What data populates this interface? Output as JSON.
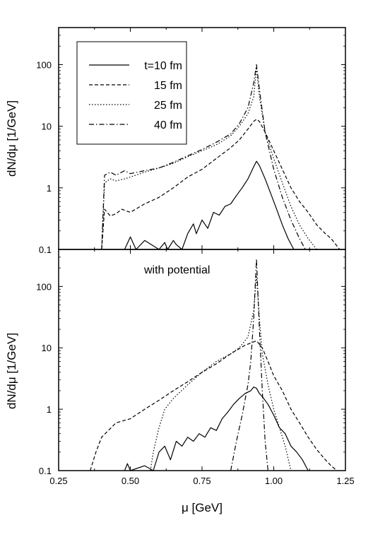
{
  "chart_data": [
    {
      "type": "line",
      "panel": "top",
      "xlabel": "μ [GeV]",
      "ylabel": "dN/dμ [1/GeV]",
      "xlim": [
        0.25,
        1.25
      ],
      "ylim": [
        0.1,
        400
      ],
      "yscale": "log",
      "x_ticks": [
        0.25,
        0.5,
        0.75,
        1.0,
        1.25
      ],
      "y_ticks": [
        0.1,
        1,
        10,
        100
      ],
      "y_tick_labels": [
        "0.1",
        "1",
        "10",
        "100"
      ],
      "legend": {
        "placement": "top-left",
        "entries": [
          {
            "label": "t=10 fm",
            "style": "solid"
          },
          {
            "label": "15 fm",
            "style": "dashed"
          },
          {
            "label": "25 fm",
            "style": "dotted"
          },
          {
            "label": "40 fm",
            "style": "dashdot"
          }
        ]
      },
      "series": [
        {
          "style": "solid",
          "points": [
            [
              0.48,
              0.1
            ],
            [
              0.5,
              0.16
            ],
            [
              0.52,
              0.1
            ],
            [
              0.55,
              0.14
            ],
            [
              0.6,
              0.1
            ],
            [
              0.62,
              0.13
            ],
            [
              0.63,
              0.1
            ],
            [
              0.65,
              0.14
            ],
            [
              0.66,
              0.12
            ],
            [
              0.68,
              0.1
            ],
            [
              0.7,
              0.18
            ],
            [
              0.72,
              0.26
            ],
            [
              0.73,
              0.18
            ],
            [
              0.75,
              0.3
            ],
            [
              0.77,
              0.22
            ],
            [
              0.79,
              0.4
            ],
            [
              0.81,
              0.36
            ],
            [
              0.83,
              0.5
            ],
            [
              0.85,
              0.55
            ],
            [
              0.87,
              0.75
            ],
            [
              0.89,
              1.0
            ],
            [
              0.91,
              1.4
            ],
            [
              0.93,
              2.2
            ],
            [
              0.94,
              2.7
            ],
            [
              0.95,
              2.3
            ],
            [
              0.97,
              1.4
            ],
            [
              0.99,
              0.8
            ],
            [
              1.01,
              0.45
            ],
            [
              1.03,
              0.25
            ],
            [
              1.05,
              0.15
            ],
            [
              1.07,
              0.1
            ]
          ]
        },
        {
          "style": "dashed",
          "points": [
            [
              0.4,
              0.1
            ],
            [
              0.41,
              0.45
            ],
            [
              0.43,
              0.35
            ],
            [
              0.45,
              0.38
            ],
            [
              0.47,
              0.45
            ],
            [
              0.5,
              0.4
            ],
            [
              0.55,
              0.55
            ],
            [
              0.6,
              0.7
            ],
            [
              0.65,
              1.0
            ],
            [
              0.7,
              1.5
            ],
            [
              0.75,
              2.0
            ],
            [
              0.8,
              3.0
            ],
            [
              0.85,
              4.5
            ],
            [
              0.88,
              6.0
            ],
            [
              0.91,
              9.0
            ],
            [
              0.93,
              12.0
            ],
            [
              0.94,
              13.0
            ],
            [
              0.95,
              12.0
            ],
            [
              0.97,
              8.0
            ],
            [
              1.0,
              4.0
            ],
            [
              1.03,
              2.0
            ],
            [
              1.06,
              1.0
            ],
            [
              1.09,
              0.6
            ],
            [
              1.12,
              0.4
            ],
            [
              1.15,
              0.25
            ],
            [
              1.18,
              0.18
            ],
            [
              1.2,
              0.15
            ],
            [
              1.23,
              0.1
            ]
          ]
        },
        {
          "style": "dotted",
          "points": [
            [
              0.4,
              0.1
            ],
            [
              0.41,
              1.2
            ],
            [
              0.43,
              1.4
            ],
            [
              0.45,
              1.3
            ],
            [
              0.48,
              1.4
            ],
            [
              0.5,
              1.5
            ],
            [
              0.55,
              1.8
            ],
            [
              0.6,
              2.1
            ],
            [
              0.65,
              2.5
            ],
            [
              0.7,
              3.2
            ],
            [
              0.75,
              4.0
            ],
            [
              0.8,
              5.0
            ],
            [
              0.85,
              7.0
            ],
            [
              0.88,
              10.0
            ],
            [
              0.91,
              16.0
            ],
            [
              0.93,
              30.0
            ],
            [
              0.94,
              90.0
            ],
            [
              0.95,
              30.0
            ],
            [
              0.97,
              8.0
            ],
            [
              1.0,
              3.0
            ],
            [
              1.03,
              1.2
            ],
            [
              1.06,
              0.5
            ],
            [
              1.09,
              0.25
            ],
            [
              1.12,
              0.15
            ],
            [
              1.15,
              0.1
            ]
          ]
        },
        {
          "style": "dashdot",
          "points": [
            [
              0.4,
              0.1
            ],
            [
              0.41,
              1.6
            ],
            [
              0.43,
              1.8
            ],
            [
              0.45,
              1.6
            ],
            [
              0.48,
              1.9
            ],
            [
              0.5,
              1.7
            ],
            [
              0.55,
              1.9
            ],
            [
              0.6,
              2.1
            ],
            [
              0.65,
              2.6
            ],
            [
              0.7,
              3.3
            ],
            [
              0.75,
              4.2
            ],
            [
              0.8,
              5.5
            ],
            [
              0.85,
              7.5
            ],
            [
              0.88,
              11.0
            ],
            [
              0.91,
              20.0
            ],
            [
              0.93,
              50.0
            ],
            [
              0.94,
              100.0
            ],
            [
              0.95,
              40.0
            ],
            [
              0.97,
              8.0
            ],
            [
              1.0,
              2.0
            ],
            [
              1.03,
              0.7
            ],
            [
              1.06,
              0.3
            ],
            [
              1.09,
              0.15
            ],
            [
              1.11,
              0.1
            ]
          ]
        }
      ]
    },
    {
      "type": "line",
      "panel": "bottom",
      "annotation": "with potential",
      "xlabel": "μ [GeV]",
      "ylabel": "dN/dμ [1/GeV]",
      "xlim": [
        0.25,
        1.25
      ],
      "ylim": [
        0.1,
        400
      ],
      "yscale": "log",
      "x_ticks": [
        0.25,
        0.5,
        0.75,
        1.0,
        1.25
      ],
      "x_tick_labels": [
        "0.25",
        "0.50",
        "0.75",
        "1.00",
        "1.25"
      ],
      "y_ticks": [
        0.1,
        1,
        10,
        100
      ],
      "y_tick_labels": [
        "0.1",
        "1",
        "10",
        "100"
      ],
      "series": [
        {
          "style": "solid",
          "points": [
            [
              0.48,
              0.1
            ],
            [
              0.49,
              0.13
            ],
            [
              0.5,
              0.1
            ],
            [
              0.55,
              0.12
            ],
            [
              0.58,
              0.1
            ],
            [
              0.6,
              0.2
            ],
            [
              0.62,
              0.25
            ],
            [
              0.64,
              0.15
            ],
            [
              0.66,
              0.3
            ],
            [
              0.68,
              0.25
            ],
            [
              0.7,
              0.35
            ],
            [
              0.72,
              0.3
            ],
            [
              0.74,
              0.4
            ],
            [
              0.76,
              0.35
            ],
            [
              0.78,
              0.5
            ],
            [
              0.8,
              0.45
            ],
            [
              0.82,
              0.7
            ],
            [
              0.84,
              0.9
            ],
            [
              0.86,
              1.2
            ],
            [
              0.88,
              1.5
            ],
            [
              0.9,
              1.8
            ],
            [
              0.92,
              2.0
            ],
            [
              0.93,
              2.3
            ],
            [
              0.94,
              2.2
            ],
            [
              0.95,
              1.8
            ],
            [
              0.96,
              1.6
            ],
            [
              0.98,
              1.2
            ],
            [
              1.0,
              0.8
            ],
            [
              1.02,
              0.5
            ],
            [
              1.04,
              0.4
            ],
            [
              1.06,
              0.25
            ],
            [
              1.08,
              0.2
            ],
            [
              1.1,
              0.15
            ],
            [
              1.12,
              0.1
            ]
          ]
        },
        {
          "style": "dashed",
          "points": [
            [
              0.36,
              0.1
            ],
            [
              0.38,
              0.2
            ],
            [
              0.4,
              0.35
            ],
            [
              0.45,
              0.6
            ],
            [
              0.5,
              0.7
            ],
            [
              0.55,
              1.0
            ],
            [
              0.6,
              1.4
            ],
            [
              0.65,
              2.0
            ],
            [
              0.7,
              2.8
            ],
            [
              0.75,
              4.0
            ],
            [
              0.8,
              5.5
            ],
            [
              0.85,
              8.0
            ],
            [
              0.9,
              11.0
            ],
            [
              0.93,
              12.5
            ],
            [
              0.94,
              13.0
            ],
            [
              0.96,
              10.0
            ],
            [
              0.98,
              6.0
            ],
            [
              1.0,
              3.5
            ],
            [
              1.03,
              2.0
            ],
            [
              1.06,
              1.0
            ],
            [
              1.09,
              0.6
            ],
            [
              1.12,
              0.35
            ],
            [
              1.15,
              0.22
            ],
            [
              1.18,
              0.15
            ],
            [
              1.2,
              0.12
            ],
            [
              1.22,
              0.1
            ]
          ]
        },
        {
          "style": "dotted",
          "points": [
            [
              0.57,
              0.1
            ],
            [
              0.58,
              0.2
            ],
            [
              0.6,
              0.5
            ],
            [
              0.62,
              1.0
            ],
            [
              0.65,
              1.5
            ],
            [
              0.7,
              2.5
            ],
            [
              0.75,
              4.0
            ],
            [
              0.8,
              6.0
            ],
            [
              0.85,
              8.0
            ],
            [
              0.88,
              10.0
            ],
            [
              0.91,
              15.0
            ],
            [
              0.93,
              40.0
            ],
            [
              0.94,
              150.0
            ],
            [
              0.95,
              30.0
            ],
            [
              0.96,
              8.0
            ],
            [
              0.98,
              2.5
            ],
            [
              1.0,
              1.0
            ],
            [
              1.02,
              0.5
            ],
            [
              1.04,
              0.25
            ],
            [
              1.06,
              0.1
            ]
          ]
        },
        {
          "style": "dashdot",
          "points": [
            [
              0.85,
              0.1
            ],
            [
              0.87,
              0.3
            ],
            [
              0.89,
              0.8
            ],
            [
              0.91,
              2.5
            ],
            [
              0.92,
              6.0
            ],
            [
              0.93,
              30.0
            ],
            [
              0.94,
              280.0
            ],
            [
              0.95,
              20.0
            ],
            [
              0.96,
              2.0
            ],
            [
              0.97,
              0.3
            ],
            [
              0.98,
              0.1
            ]
          ]
        }
      ]
    }
  ]
}
